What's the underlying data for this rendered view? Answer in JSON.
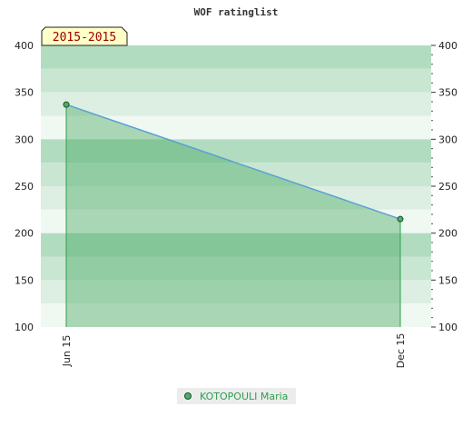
{
  "chart_data": {
    "type": "area",
    "title": "WOF ratinglist",
    "period_badge": "2015-2015",
    "categories": [
      "Jun 15",
      "Dec 15"
    ],
    "series": [
      {
        "name": "KOTOPOULI Maria",
        "values": [
          337,
          215
        ]
      }
    ],
    "ylim": [
      100,
      400
    ],
    "y_ticks": [
      "100",
      "150",
      "200",
      "250",
      "300",
      "350",
      "400"
    ],
    "y_axis_sides": "left-and-right",
    "grid": true,
    "legend_position": "bottom-center",
    "colors": {
      "line": "#5b9fd6",
      "fill": "#3fa55a",
      "marker": "#4caf6a",
      "legend_text": "#2e9e4f",
      "band_dark": "#b2dcc0",
      "band_light": "#f0f8f2",
      "badge_fill": "#ffffc8"
    }
  }
}
